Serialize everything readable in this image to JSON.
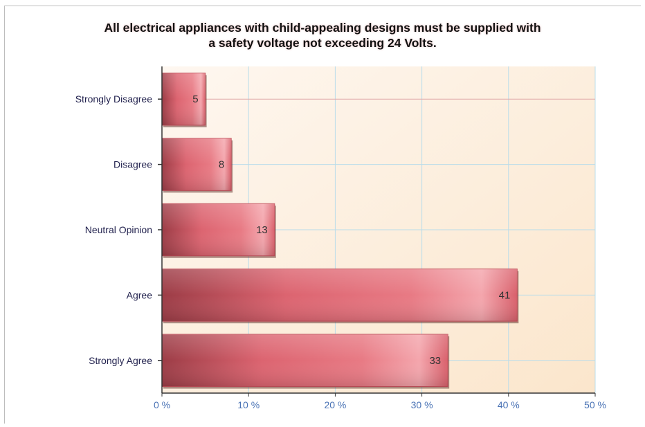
{
  "chart_data": {
    "type": "bar",
    "orientation": "horizontal",
    "title": "All electrical appliances with child-appealing designs must be supplied with a safety voltage not exceeding 24 Volts.",
    "title_lines": [
      "All electrical appliances with child-appealing designs must be supplied with",
      "a safety voltage not exceeding 24 Volts."
    ],
    "categories": [
      "Strongly Disagree",
      "Disagree",
      "Neutral Opinion",
      "Agree",
      "Strongly Agree"
    ],
    "values": [
      5,
      8,
      13,
      41,
      33
    ],
    "value_labels": [
      "5",
      "8",
      "13",
      "41",
      "33"
    ],
    "xlim": [
      0,
      50
    ],
    "x_ticks": [
      0,
      10,
      20,
      30,
      40,
      50
    ],
    "x_tick_labels": [
      "0 %",
      "10 %",
      "20 %",
      "30 %",
      "40 %",
      "50 %"
    ],
    "grid": true,
    "colors": {
      "bar_dark": "#a8404a",
      "bar_mid": "#e06a74",
      "bar_light": "#f4a0a8",
      "grid": "#bfe0ec",
      "plot_bg_top": "#fdf2e8",
      "plot_bg_bottom": "#fbe8cf"
    }
  }
}
